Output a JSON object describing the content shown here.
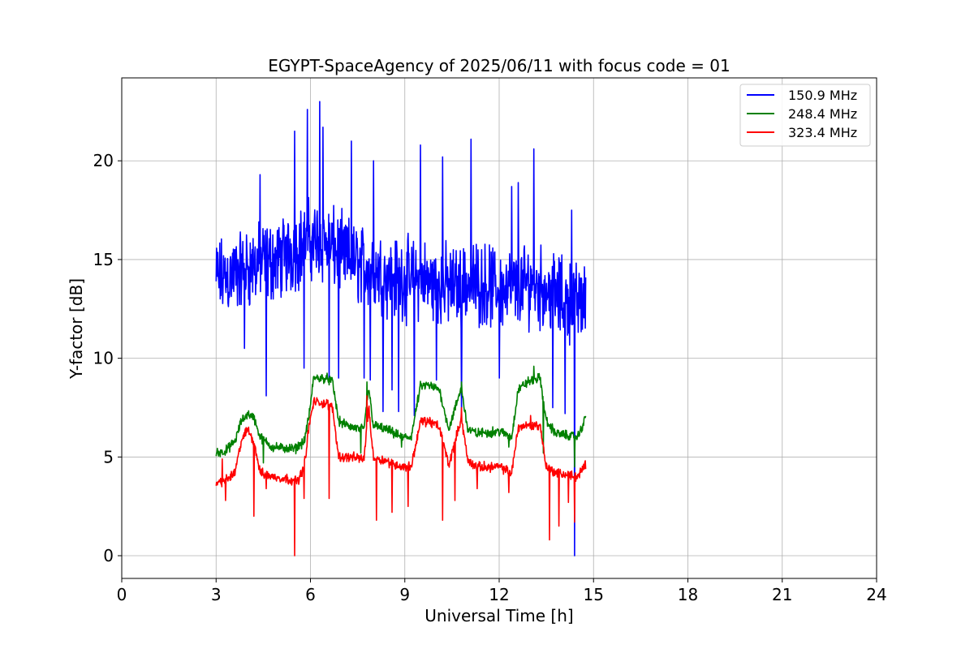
{
  "chart_data": {
    "type": "line",
    "title": "EGYPT-SpaceAgency of 2025/06/11 with focus code = 01",
    "xlabel": "Universal Time [h]",
    "ylabel": "Y-factor [dB]",
    "xlim": [
      0,
      24
    ],
    "ylim": [
      -1.15,
      24.2
    ],
    "xticks": [
      0,
      3,
      6,
      9,
      12,
      15,
      18,
      21,
      24
    ],
    "yticks": [
      0,
      5,
      10,
      15,
      20
    ],
    "grid": true,
    "legend_position": "top-right",
    "series": [
      {
        "name": "150.9 MHz",
        "color": "#0000ff",
        "noise_amplitude": 2.5,
        "dips": [
          [
            3.9,
            10.5
          ],
          [
            4.4,
            9.0
          ],
          [
            4.6,
            8.1
          ],
          [
            5.5,
            9.3
          ],
          [
            5.8,
            9.5
          ],
          [
            6.6,
            8.7
          ],
          [
            6.9,
            9.0
          ],
          [
            7.7,
            9.0
          ],
          [
            7.9,
            8.9
          ],
          [
            8.3,
            7.3
          ],
          [
            8.6,
            8.4
          ],
          [
            8.8,
            7.3
          ],
          [
            9.3,
            7.1
          ],
          [
            10.0,
            8.9
          ],
          [
            10.8,
            7.1
          ],
          [
            11.1,
            7.8
          ],
          [
            12.0,
            9.0
          ],
          [
            12.6,
            8.4
          ],
          [
            13.7,
            7.5
          ],
          [
            14.1,
            7.2
          ],
          [
            14.4,
            0.0
          ]
        ],
        "peaks": [
          [
            4.4,
            19.3
          ],
          [
            5.5,
            21.5
          ],
          [
            5.9,
            22.6
          ],
          [
            6.3,
            23.0
          ],
          [
            6.4,
            21.7
          ],
          [
            7.3,
            21.0
          ],
          [
            8.0,
            20.0
          ],
          [
            9.5,
            20.8
          ],
          [
            10.2,
            20.2
          ],
          [
            11.1,
            21.1
          ],
          [
            12.4,
            18.7
          ],
          [
            12.6,
            18.9
          ],
          [
            13.1,
            20.6
          ],
          [
            14.3,
            17.5
          ]
        ],
        "x": [
          3.0,
          3.5,
          4.0,
          4.5,
          5.0,
          5.5,
          6.0,
          6.5,
          7.0,
          7.5,
          8.0,
          8.5,
          9.0,
          9.5,
          10.0,
          10.5,
          11.0,
          11.5,
          12.0,
          12.5,
          13.0,
          13.5,
          14.0,
          14.5,
          14.75
        ],
        "y": [
          14.0,
          14.2,
          14.6,
          14.8,
          15.0,
          15.5,
          16.0,
          15.8,
          15.2,
          14.8,
          14.5,
          14.2,
          14.0,
          14.0,
          13.8,
          13.6,
          13.8,
          13.8,
          13.5,
          13.5,
          13.8,
          13.5,
          13.0,
          12.8,
          13.0
        ]
      },
      {
        "name": "248.4 MHz",
        "color": "#008000",
        "noise_amplitude": 0.3,
        "dips": [
          [
            4.5,
            4.7
          ],
          [
            7.6,
            5.2
          ],
          [
            8.9,
            5.5
          ],
          [
            12.3,
            5.5
          ],
          [
            13.4,
            5.2
          ],
          [
            14.4,
            4.5
          ]
        ],
        "peaks": [
          [
            7.8,
            8.8
          ],
          [
            10.8,
            8.8
          ],
          [
            13.1,
            9.6
          ]
        ],
        "x": [
          3.0,
          3.3,
          3.6,
          3.8,
          4.0,
          4.2,
          4.4,
          4.8,
          5.5,
          5.8,
          5.95,
          6.1,
          6.5,
          6.7,
          6.9,
          7.3,
          7.7,
          7.85,
          8.0,
          8.4,
          8.9,
          9.2,
          9.5,
          9.8,
          10.1,
          10.4,
          10.8,
          11.0,
          11.3,
          12.0,
          12.4,
          12.6,
          12.9,
          13.3,
          13.5,
          13.8,
          14.5,
          14.75
        ],
        "y": [
          5.2,
          5.3,
          5.8,
          6.8,
          7.2,
          7.0,
          6.0,
          5.5,
          5.4,
          5.8,
          7.0,
          9.0,
          9.0,
          8.8,
          6.8,
          6.5,
          6.4,
          8.5,
          6.6,
          6.4,
          6.0,
          6.0,
          8.6,
          8.6,
          8.4,
          6.4,
          8.5,
          6.4,
          6.2,
          6.3,
          6.0,
          8.4,
          8.8,
          9.0,
          6.8,
          6.2,
          6.0,
          7.0
        ]
      },
      {
        "name": "323.4 MHz",
        "color": "#ff0000",
        "noise_amplitude": 0.3,
        "dips": [
          [
            3.3,
            2.8
          ],
          [
            4.2,
            2.0
          ],
          [
            4.6,
            3.4
          ],
          [
            5.5,
            0.0
          ],
          [
            5.8,
            2.9
          ],
          [
            6.6,
            2.9
          ],
          [
            7.8,
            2.2
          ],
          [
            8.1,
            1.8
          ],
          [
            8.6,
            2.2
          ],
          [
            9.1,
            2.5
          ],
          [
            10.2,
            1.8
          ],
          [
            10.6,
            2.8
          ],
          [
            11.3,
            3.4
          ],
          [
            12.3,
            3.2
          ],
          [
            13.6,
            0.8
          ],
          [
            13.9,
            1.5
          ],
          [
            14.2,
            2.7
          ],
          [
            14.4,
            1.7
          ]
        ],
        "peaks": [
          [
            3.2,
            4.9
          ],
          [
            7.8,
            8.1
          ],
          [
            10.8,
            7.5
          ],
          [
            13.0,
            7.1
          ]
        ],
        "x": [
          3.0,
          3.3,
          3.6,
          3.8,
          4.0,
          4.2,
          4.4,
          4.8,
          5.2,
          5.6,
          5.8,
          5.95,
          6.1,
          6.5,
          6.7,
          6.9,
          7.3,
          7.7,
          7.85,
          8.0,
          8.4,
          8.9,
          9.2,
          9.5,
          9.8,
          10.1,
          10.4,
          10.8,
          11.0,
          11.3,
          12.0,
          12.4,
          12.6,
          12.9,
          13.3,
          13.5,
          13.8,
          14.5,
          14.75
        ],
        "y": [
          3.7,
          3.8,
          4.2,
          5.8,
          6.4,
          5.8,
          4.2,
          4.0,
          3.9,
          3.8,
          4.5,
          6.5,
          7.8,
          7.7,
          7.5,
          5.0,
          5.0,
          4.9,
          7.5,
          5.0,
          4.8,
          4.5,
          4.5,
          6.8,
          6.8,
          6.5,
          4.6,
          7.0,
          4.8,
          4.5,
          4.5,
          4.2,
          6.5,
          6.6,
          6.6,
          4.5,
          4.2,
          4.0,
          4.6
        ]
      }
    ]
  }
}
